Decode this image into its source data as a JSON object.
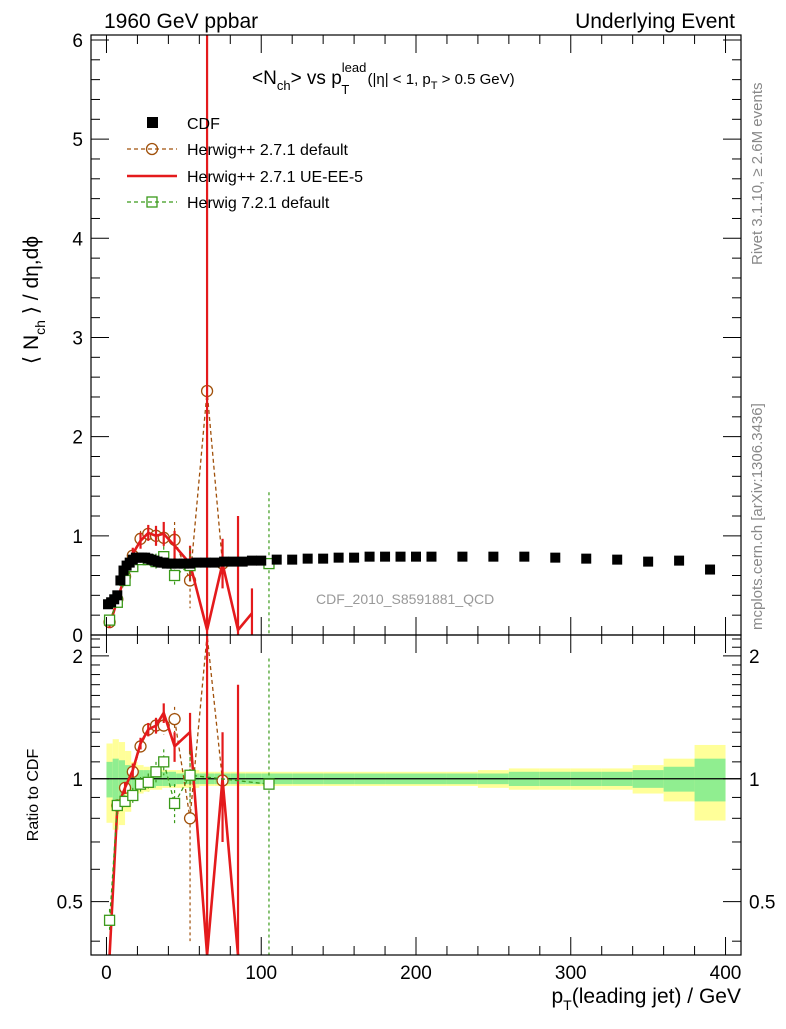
{
  "header": {
    "left": "1960 GeV ppbar",
    "right": "Underlying Event"
  },
  "side_labels": {
    "top": "Rivet 3.1.10, ≥ 2.6M events",
    "bottom": "mcplots.cern.ch [arXiv:1306.3436]"
  },
  "watermark": "CDF_2010_S8591881_QCD",
  "colors": {
    "cdf": "#000000",
    "herwig_default": "#a0500a",
    "herwig_ueee5": "#e41a1c",
    "herwig72": "#3a9a1a",
    "band_inner": "#90ee90",
    "band_outer": "#ffff99"
  },
  "chart_data": [
    {
      "type": "scatter",
      "title": "<Nch> vs pT^lead (|η| < 1, pT > 0.5 GeV)",
      "title_parts": {
        "main": "<N",
        "sub1": "ch",
        "mid": "> vs p",
        "sup": "lead",
        "sub2": "T",
        "rest1": " (|η| < 1, p",
        "sub3": "T",
        "rest2": " > 0.5 GeV)"
      },
      "ylabel_parts": {
        "a": "⟨ N",
        "sub": "ch",
        "b": " ⟩ / dη,dϕ"
      },
      "xlim": [
        -10,
        410
      ],
      "ylim": [
        0,
        6.05
      ],
      "yticks": [
        "0",
        "1",
        "2",
        "3",
        "4",
        "5",
        "6"
      ],
      "legend_position": "top-left",
      "series": [
        {
          "name": "CDF",
          "x": [
            1,
            3,
            5,
            7,
            9,
            11,
            13,
            15,
            17,
            19,
            21,
            23,
            25,
            27,
            29,
            31,
            33,
            35,
            37,
            39,
            42,
            46,
            50,
            54,
            58,
            64,
            70,
            76,
            82,
            88,
            94,
            100,
            110,
            120,
            130,
            140,
            150,
            160,
            170,
            180,
            190,
            200,
            210,
            230,
            250,
            270,
            290,
            310,
            330,
            350,
            370,
            390
          ],
          "y": [
            0.31,
            0.33,
            0.36,
            0.4,
            0.55,
            0.65,
            0.7,
            0.73,
            0.76,
            0.78,
            0.78,
            0.78,
            0.78,
            0.77,
            0.76,
            0.75,
            0.74,
            0.73,
            0.73,
            0.72,
            0.72,
            0.72,
            0.72,
            0.72,
            0.73,
            0.73,
            0.73,
            0.74,
            0.74,
            0.74,
            0.75,
            0.75,
            0.76,
            0.76,
            0.77,
            0.77,
            0.78,
            0.78,
            0.79,
            0.79,
            0.79,
            0.79,
            0.79,
            0.79,
            0.79,
            0.79,
            0.78,
            0.77,
            0.76,
            0.74,
            0.75,
            0.66
          ]
        },
        {
          "name": "Herwig++ 2.7.1 default",
          "x": [
            2,
            7,
            12,
            17,
            22,
            27,
            32,
            37,
            44,
            54,
            65,
            75
          ],
          "y": [
            0.13,
            0.36,
            0.59,
            0.8,
            0.97,
            1.02,
            1.0,
            0.98,
            0.96,
            0.55,
            2.46,
            0.72
          ],
          "err": [
            0.03,
            0.05,
            0.05,
            0.06,
            0.08,
            0.08,
            0.1,
            0.12,
            0.18,
            0.28,
            1.2,
            0.1
          ]
        },
        {
          "name": "Herwig++ 2.7.1 UE-EE-5",
          "x": [
            2,
            7,
            12,
            17,
            22,
            27,
            32,
            37,
            44,
            54,
            65,
            75,
            85,
            94
          ],
          "y": [
            0.1,
            0.35,
            0.6,
            0.82,
            0.95,
            1.03,
            1.0,
            1.02,
            0.9,
            0.72,
            0.05,
            0.72,
            0.05,
            0.22
          ],
          "err": [
            0.03,
            0.05,
            0.05,
            0.06,
            0.08,
            0.08,
            0.1,
            0.12,
            0.15,
            0.18,
            6.5,
            0.25,
            1.15,
            0.25
          ]
        },
        {
          "name": "Herwig 7.2.1 default",
          "x": [
            2,
            7,
            12,
            17,
            22,
            27,
            32,
            37,
            44,
            54,
            105
          ],
          "y": [
            0.15,
            0.33,
            0.55,
            0.69,
            0.76,
            0.76,
            0.74,
            0.79,
            0.6,
            0.7,
            0.72
          ],
          "err": [
            0.03,
            0.04,
            0.05,
            0.05,
            0.06,
            0.06,
            0.08,
            0.1,
            0.12,
            0.18,
            0.72
          ]
        }
      ]
    },
    {
      "type": "line",
      "ylabel": "Ratio to CDF",
      "xlabel_parts": {
        "a": "p",
        "sub": "T",
        "b": "(leading jet) / GeV"
      },
      "xlim": [
        -10,
        410
      ],
      "ylim": [
        0.37,
        2.25
      ],
      "xticks": [
        "0",
        "100",
        "200",
        "300",
        "400"
      ],
      "yticks": [
        "0.5",
        "1",
        "2"
      ],
      "band_bins": {
        "edges": [
          0,
          4,
          8,
          12,
          16,
          20,
          24,
          28,
          32,
          36,
          40,
          45,
          50,
          55,
          60,
          70,
          80,
          90,
          100,
          120,
          140,
          160,
          180,
          200,
          220,
          240,
          260,
          280,
          300,
          320,
          340,
          360,
          380,
          400
        ],
        "inner": [
          0.1,
          0.12,
          0.11,
          0.08,
          0.06,
          0.05,
          0.05,
          0.05,
          0.04,
          0.04,
          0.04,
          0.03,
          0.03,
          0.03,
          0.03,
          0.03,
          0.03,
          0.03,
          0.03,
          0.03,
          0.03,
          0.03,
          0.03,
          0.03,
          0.03,
          0.03,
          0.04,
          0.04,
          0.04,
          0.04,
          0.05,
          0.07,
          0.12
        ],
        "outer": [
          0.22,
          0.25,
          0.23,
          0.17,
          0.1,
          0.08,
          0.07,
          0.06,
          0.06,
          0.05,
          0.05,
          0.05,
          0.05,
          0.05,
          0.04,
          0.04,
          0.04,
          0.04,
          0.04,
          0.04,
          0.04,
          0.04,
          0.04,
          0.04,
          0.04,
          0.05,
          0.06,
          0.06,
          0.06,
          0.06,
          0.08,
          0.12,
          0.21
        ]
      },
      "series": [
        {
          "name": "Herwig++ 2.7.1 default",
          "x": [
            7,
            12,
            17,
            22,
            27,
            32,
            37,
            44,
            54,
            65,
            75
          ],
          "y": [
            0.86,
            0.95,
            1.04,
            1.2,
            1.32,
            1.35,
            1.35,
            1.4,
            0.8,
            2.6,
            0.99
          ],
          "err": [
            0.03,
            0.03,
            0.03,
            0.04,
            0.04,
            0.06,
            0.07,
            0.1,
            0.4,
            1.5,
            0.2
          ]
        },
        {
          "name": "Herwig++ 2.7.1 UE-EE-5",
          "x": [
            2,
            7,
            12,
            17,
            22,
            27,
            32,
            37,
            44,
            54,
            65,
            75,
            85
          ],
          "y": [
            0.3,
            0.85,
            0.95,
            1.05,
            1.22,
            1.32,
            1.35,
            1.45,
            1.2,
            1.3,
            0.1,
            1.0,
            0.1
          ],
          "err": [
            0.05,
            0.03,
            0.03,
            0.04,
            0.04,
            0.05,
            0.06,
            0.08,
            0.1,
            0.15,
            3.0,
            0.3,
            1.6
          ]
        },
        {
          "name": "Herwig 7.2.1 default",
          "x": [
            2,
            7,
            12,
            17,
            22,
            27,
            32,
            37,
            44,
            54,
            105
          ],
          "y": [
            0.45,
            0.86,
            0.88,
            0.91,
            0.97,
            0.98,
            1.04,
            1.1,
            0.87,
            1.02,
            0.97
          ],
          "err": [
            0.03,
            0.03,
            0.03,
            0.04,
            0.04,
            0.05,
            0.06,
            0.08,
            0.1,
            0.15,
            1.0
          ]
        }
      ]
    }
  ]
}
